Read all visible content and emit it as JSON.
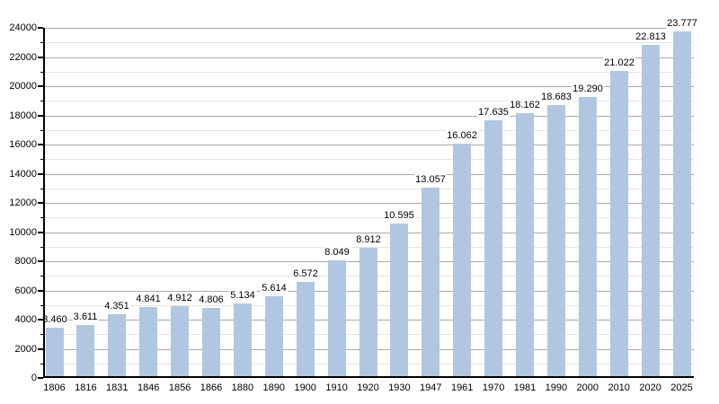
{
  "chart": {
    "background_color": "#ffffff",
    "bar_color": "#b1c7e1",
    "major_grid_color": "#a9a9a9",
    "minor_grid_color": "#e4e4e4",
    "axis_color": "#000000",
    "text_color": "#000000"
  },
  "chart_data": {
    "type": "bar",
    "title": "",
    "xlabel": "",
    "ylabel": "",
    "categories": [
      "1806",
      "1816",
      "1831",
      "1846",
      "1856",
      "1866",
      "1880",
      "1890",
      "1900",
      "1910",
      "1920",
      "1930",
      "1947",
      "1961",
      "1970",
      "1981",
      "1990",
      "2000",
      "2010",
      "2020",
      "2025"
    ],
    "values": [
      3460,
      3611,
      4351,
      4841,
      4912,
      4806,
      5134,
      5614,
      6572,
      8049,
      8912,
      10595,
      13057,
      16062,
      17635,
      18162,
      18683,
      19290,
      21022,
      22813,
      23777
    ],
    "bar_labels": [
      "3.460",
      "3.611",
      "4.351",
      "4.841",
      "4.912",
      "4.806",
      "5.134",
      "5.614",
      "6.572",
      "8.049",
      "8.912",
      "10.595",
      "13.057",
      "16.062",
      "17.635",
      "18.162",
      "18.683",
      "19.290",
      "21.022",
      "22.813",
      "23.777"
    ],
    "ylim": [
      0,
      24000
    ],
    "y_major_tick_values": [
      0,
      2000,
      4000,
      6000,
      8000,
      10000,
      12000,
      14000,
      16000,
      18000,
      20000,
      22000,
      24000
    ],
    "y_tick_labels": [
      "0",
      "2000",
      "4000",
      "6000",
      "8000",
      "10000",
      "12000",
      "14000",
      "16000",
      "18000",
      "20000",
      "22000",
      "24000"
    ],
    "y_minor_step": 1000,
    "grid": "major-and-minor-horizontal",
    "legend_position": "none"
  },
  "layout_note_values_visible_only": true
}
